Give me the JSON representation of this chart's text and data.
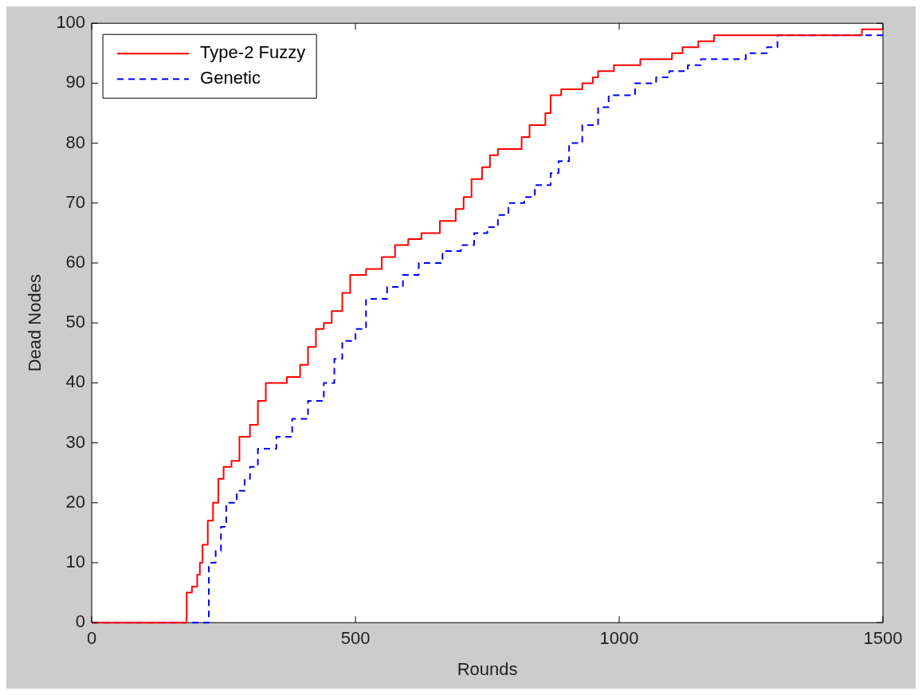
{
  "chart_data": {
    "type": "step",
    "xlabel": "Rounds",
    "ylabel": "Dead Nodes",
    "xlim": [
      0,
      1500
    ],
    "xticks": [
      0,
      500,
      1000,
      1500
    ],
    "ylim": [
      0,
      100
    ],
    "yticks": [
      0,
      10,
      20,
      30,
      40,
      50,
      60,
      70,
      80,
      90,
      100
    ],
    "grid": false,
    "legend": "top left",
    "marker": "none",
    "series": [
      {
        "name": "Type-2 Fuzzy",
        "color": "#ff0000",
        "line_style": "solid",
        "x": [
          0,
          177,
          180,
          190,
          200,
          205,
          210,
          220,
          230,
          240,
          250,
          265,
          280,
          300,
          315,
          330,
          370,
          395,
          410,
          425,
          440,
          455,
          475,
          490,
          520,
          550,
          575,
          600,
          625,
          660,
          690,
          705,
          720,
          740,
          755,
          770,
          800,
          815,
          830,
          860,
          870,
          890,
          930,
          950,
          960,
          990,
          1040,
          1100,
          1120,
          1150,
          1180,
          1460,
          1500
        ],
        "values": [
          0,
          0,
          5,
          6,
          8,
          10,
          13,
          17,
          20,
          24,
          26,
          27,
          31,
          33,
          37,
          40,
          41,
          43,
          46,
          49,
          50,
          52,
          55,
          58,
          59,
          61,
          63,
          64,
          65,
          67,
          69,
          71,
          74,
          76,
          78,
          79,
          79,
          81,
          83,
          85,
          88,
          89,
          90,
          91,
          92,
          93,
          94,
          95,
          96,
          97,
          98,
          99,
          99
        ]
      },
      {
        "name": "Genetic",
        "color": "#0000ff",
        "line_style": "dashed",
        "x": [
          0,
          218,
          222,
          235,
          245,
          255,
          275,
          290,
          300,
          315,
          350,
          380,
          410,
          440,
          460,
          475,
          500,
          520,
          560,
          590,
          620,
          665,
          700,
          725,
          750,
          770,
          790,
          820,
          840,
          870,
          885,
          905,
          930,
          960,
          980,
          1015,
          1030,
          1070,
          1095,
          1130,
          1155,
          1240,
          1280,
          1300,
          1500
        ],
        "values": [
          0,
          0,
          10,
          12,
          16,
          20,
          22,
          24,
          26,
          29,
          31,
          34,
          37,
          40,
          44,
          47,
          49,
          54,
          56,
          58,
          60,
          62,
          63,
          65,
          66,
          68,
          70,
          71,
          73,
          75,
          77,
          80,
          83,
          86,
          88,
          88,
          90,
          91,
          92,
          93,
          94,
          95,
          96,
          98,
          98
        ]
      }
    ]
  }
}
